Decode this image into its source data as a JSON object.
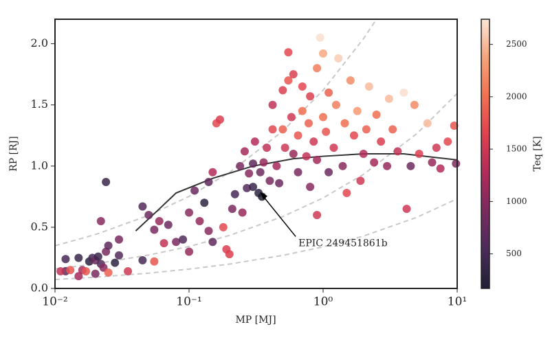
{
  "chart_data": {
    "type": "scatter",
    "xlabel": "MP [MJ]",
    "ylabel": "RP [RJ]",
    "colorbar_label": "Teq [K]",
    "xscale": "log",
    "xlim": [
      0.01,
      10
    ],
    "xticks": [
      {
        "value": 0.01,
        "label": "10⁻²"
      },
      {
        "value": 0.1,
        "label": "10⁻¹"
      },
      {
        "value": 1,
        "label": "10⁰"
      },
      {
        "value": 10,
        "label": "10¹"
      }
    ],
    "ylim": [
      0,
      2.2
    ],
    "yticks": [
      {
        "value": 0,
        "label": "0.0"
      },
      {
        "value": 0.5,
        "label": "0.5"
      },
      {
        "value": 1,
        "label": "1.0"
      },
      {
        "value": 1.5,
        "label": "1.5"
      },
      {
        "value": 2,
        "label": "2.0"
      }
    ],
    "clim": [
      170,
      2740
    ],
    "cticks": [
      500,
      1000,
      1500,
      2000,
      2500
    ],
    "colormap": [
      "#1e2033",
      "#4a2a5a",
      "#7a2a5f",
      "#b02a5a",
      "#e0404f",
      "#f07050",
      "#f6a37a",
      "#fbe6d8"
    ],
    "points": [
      [
        0.012,
        0.24,
        500
      ],
      [
        0.012,
        0.14,
        700
      ],
      [
        0.011,
        0.14,
        1400
      ],
      [
        0.013,
        0.15,
        1800
      ],
      [
        0.015,
        0.25,
        400
      ],
      [
        0.016,
        0.15,
        1200
      ],
      [
        0.017,
        0.14,
        1800
      ],
      [
        0.018,
        0.22,
        300
      ],
      [
        0.019,
        0.25,
        500
      ],
      [
        0.02,
        0.23,
        800
      ],
      [
        0.021,
        0.26,
        400
      ],
      [
        0.022,
        0.2,
        600
      ],
      [
        0.023,
        0.17,
        1000
      ],
      [
        0.024,
        0.3,
        900
      ],
      [
        0.025,
        0.35,
        700
      ],
      [
        0.025,
        0.13,
        1900
      ],
      [
        0.022,
        0.55,
        1000
      ],
      [
        0.024,
        0.87,
        400
      ],
      [
        0.03,
        0.27,
        600
      ],
      [
        0.028,
        0.21,
        300
      ],
      [
        0.02,
        0.12,
        900
      ],
      [
        0.015,
        0.1,
        1200
      ],
      [
        0.035,
        0.14,
        1500
      ],
      [
        0.03,
        0.4,
        900
      ],
      [
        0.045,
        0.67,
        600
      ],
      [
        0.05,
        0.6,
        800
      ],
      [
        0.055,
        0.48,
        900
      ],
      [
        0.06,
        0.55,
        1100
      ],
      [
        0.045,
        0.23,
        500
      ],
      [
        0.055,
        0.22,
        1800
      ],
      [
        0.065,
        0.37,
        1400
      ],
      [
        0.07,
        0.52,
        800
      ],
      [
        0.08,
        0.38,
        900
      ],
      [
        0.09,
        0.4,
        600
      ],
      [
        0.1,
        0.3,
        1100
      ],
      [
        0.1,
        0.62,
        1000
      ],
      [
        0.11,
        0.8,
        800
      ],
      [
        0.12,
        0.55,
        1100
      ],
      [
        0.13,
        0.7,
        300
      ],
      [
        0.14,
        0.47,
        1000
      ],
      [
        0.15,
        0.38,
        700
      ],
      [
        0.14,
        0.87,
        700
      ],
      [
        0.15,
        0.95,
        1300
      ],
      [
        0.16,
        1.35,
        1700
      ],
      [
        0.17,
        1.38,
        1600
      ],
      [
        0.18,
        0.5,
        1700
      ],
      [
        0.19,
        0.32,
        1600
      ],
      [
        0.2,
        0.28,
        1600
      ],
      [
        0.21,
        0.65,
        900
      ],
      [
        0.22,
        0.77,
        500
      ],
      [
        0.25,
        0.62,
        1100
      ],
      [
        0.24,
        1.0,
        900
      ],
      [
        0.26,
        1.12,
        1200
      ],
      [
        0.27,
        0.82,
        600
      ],
      [
        0.28,
        0.94,
        1000
      ],
      [
        0.3,
        1.02,
        700
      ],
      [
        0.31,
        1.2,
        1300
      ],
      [
        0.33,
        0.78,
        300
      ],
      [
        0.34,
        0.95,
        800
      ],
      [
        0.36,
        1.03,
        1100
      ],
      [
        0.38,
        1.15,
        1400
      ],
      [
        0.4,
        0.88,
        900
      ],
      [
        0.42,
        1.5,
        1400
      ],
      [
        0.42,
        1.3,
        1700
      ],
      [
        0.45,
        1.0,
        1200
      ],
      [
        0.47,
        0.86,
        800
      ],
      [
        0.5,
        1.62,
        1600
      ],
      [
        0.5,
        1.3,
        1900
      ],
      [
        0.52,
        1.15,
        1500
      ],
      [
        0.55,
        1.7,
        1800
      ],
      [
        0.55,
        1.93,
        1700
      ],
      [
        0.58,
        1.4,
        1500
      ],
      [
        0.6,
        1.1,
        1100
      ],
      [
        0.6,
        1.75,
        1600
      ],
      [
        0.65,
        1.25,
        1800
      ],
      [
        0.65,
        0.95,
        900
      ],
      [
        0.7,
        1.45,
        2000
      ],
      [
        0.7,
        1.65,
        1700
      ],
      [
        0.75,
        1.08,
        1400
      ],
      [
        0.78,
        1.35,
        1900
      ],
      [
        0.8,
        1.57,
        1600
      ],
      [
        0.85,
        1.2,
        1500
      ],
      [
        0.9,
        1.05,
        1200
      ],
      [
        0.9,
        1.8,
        2100
      ],
      [
        0.95,
        2.05,
        2700
      ],
      [
        1.0,
        1.92,
        2400
      ],
      [
        1.0,
        1.4,
        2000
      ],
      [
        1.05,
        1.28,
        1800
      ],
      [
        1.1,
        0.95,
        800
      ],
      [
        1.1,
        1.6,
        1900
      ],
      [
        1.2,
        1.15,
        1500
      ],
      [
        1.25,
        1.5,
        2100
      ],
      [
        1.3,
        1.88,
        2600
      ],
      [
        1.4,
        1.0,
        1000
      ],
      [
        1.45,
        1.35,
        2000
      ],
      [
        1.5,
        0.78,
        1700
      ],
      [
        1.6,
        1.7,
        2200
      ],
      [
        1.7,
        1.25,
        1700
      ],
      [
        1.8,
        1.45,
        2300
      ],
      [
        1.9,
        0.88,
        1500
      ],
      [
        2.0,
        1.1,
        1300
      ],
      [
        2.1,
        1.3,
        1900
      ],
      [
        2.2,
        1.65,
        2500
      ],
      [
        2.4,
        1.03,
        1200
      ],
      [
        2.5,
        1.42,
        2000
      ],
      [
        2.7,
        1.2,
        1600
      ],
      [
        3.0,
        1.0,
        1100
      ],
      [
        3.1,
        1.55,
        2500
      ],
      [
        3.3,
        1.3,
        1900
      ],
      [
        3.6,
        1.12,
        1400
      ],
      [
        4.0,
        1.6,
        2700
      ],
      [
        4.2,
        0.65,
        1500
      ],
      [
        4.5,
        1.0,
        800
      ],
      [
        4.8,
        1.5,
        2200
      ],
      [
        5.2,
        1.1,
        1600
      ],
      [
        6,
        1.35,
        2500
      ],
      [
        6.5,
        1.03,
        1100
      ],
      [
        7,
        1.15,
        1500
      ],
      [
        7.5,
        0.98,
        1300
      ],
      [
        8.5,
        1.2,
        1700
      ],
      [
        9.5,
        1.33,
        1800
      ],
      [
        9.8,
        1.02,
        900
      ],
      [
        0.9,
        0.6,
        1500
      ],
      [
        0.8,
        0.83,
        1000
      ],
      [
        0.35,
        0.75,
        170
      ],
      [
        0.3,
        0.83,
        400
      ]
    ],
    "lines": [
      {
        "style": "dashed",
        "color": "#c8c8c8",
        "x": [
          0.01,
          0.02,
          0.05,
          0.1,
          0.2,
          0.5,
          1,
          2,
          5,
          10
        ],
        "y": [
          0.073,
          0.092,
          0.125,
          0.158,
          0.199,
          0.27,
          0.34,
          0.428,
          0.581,
          0.733
        ]
      },
      {
        "style": "dashed",
        "color": "#c8c8c8",
        "x": [
          0.01,
          0.02,
          0.05,
          0.1,
          0.2,
          0.5,
          1,
          2,
          5,
          10
        ],
        "y": [
          0.159,
          0.201,
          0.273,
          0.343,
          0.433,
          0.587,
          0.74,
          0.932,
          1.265,
          1.594
        ]
      },
      {
        "style": "dashed",
        "color": "#c8c8c8",
        "x": [
          0.01,
          0.02,
          0.05,
          0.1,
          0.2,
          0.5,
          1,
          2,
          2.5
        ],
        "y": [
          0.349,
          0.44,
          0.597,
          0.752,
          0.947,
          1.286,
          1.62,
          2.041,
          2.2
        ]
      },
      {
        "style": "solid",
        "color": "#333333",
        "x": [
          0.04,
          0.06,
          0.08,
          0.15,
          0.3,
          0.6,
          1,
          2,
          4,
          10
        ],
        "y": [
          0.47,
          0.65,
          0.78,
          0.9,
          1.0,
          1.06,
          1.08,
          1.1,
          1.1,
          1.05
        ]
      }
    ],
    "annotation": {
      "text": "EPIC 249451861b",
      "x": 0.33,
      "y": 0.8
    }
  }
}
